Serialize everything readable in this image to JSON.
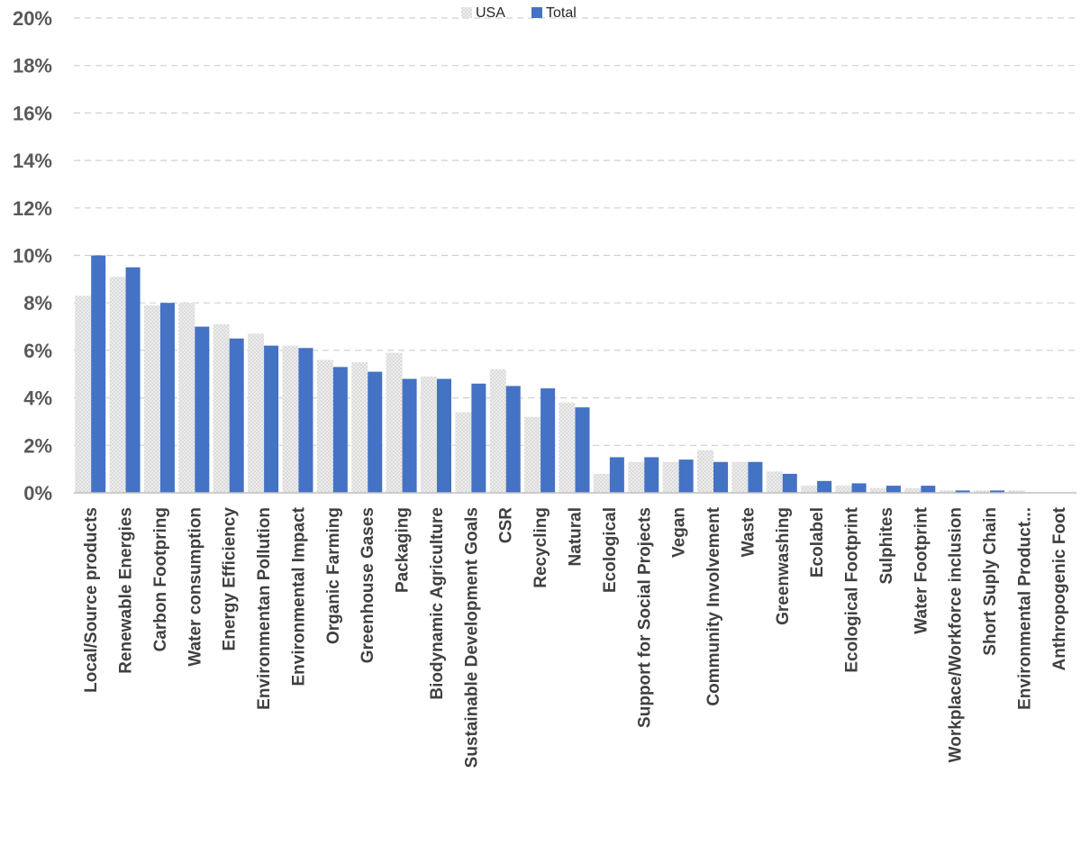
{
  "chart_data": {
    "type": "bar",
    "title": "",
    "xlabel": "",
    "ylabel": "",
    "ylim": [
      0,
      20
    ],
    "yticks": [
      "0%",
      "2%",
      "4%",
      "6%",
      "8%",
      "10%",
      "12%",
      "14%",
      "16%",
      "18%",
      "20%"
    ],
    "grid": "horizontal dashed",
    "legend_position": "top-center",
    "categories": [
      "Local/Source products",
      "Renewable Energies",
      "Carbon Footpring",
      "Water consumption",
      "Energy Efficiency",
      "Environmentan Pollution",
      "Environmental Impact",
      "Organic Farming",
      "Greenhouse Gases",
      "Packaging",
      "Biodynamic Agriculture",
      "Sustainable Development Goals",
      "CSR",
      "Recycling",
      "Natural",
      "Ecological",
      "Support for Social Projects",
      "Vegan",
      "Community Involvement",
      "Waste",
      "Greenwashing",
      "Ecolabel",
      "Ecological Footprint",
      "Sulphites",
      "Water Footprint",
      "Workplace/Workforce inclusion",
      "Short Suply Chain",
      "Environmental Product...",
      "Anthropogenic Foot"
    ],
    "series": [
      {
        "name": "USA",
        "color": "#e4e4e4",
        "pattern": "dotted",
        "values": [
          8.3,
          9.1,
          7.9,
          8.0,
          7.1,
          6.7,
          6.2,
          5.6,
          5.5,
          5.9,
          4.9,
          3.4,
          5.2,
          3.2,
          3.8,
          0.8,
          1.3,
          1.3,
          1.8,
          1.3,
          0.9,
          0.3,
          0.3,
          0.2,
          0.2,
          0.1,
          0.1,
          0.1,
          0.0
        ]
      },
      {
        "name": "Total",
        "color": "#4472c4",
        "values": [
          10.0,
          9.5,
          8.0,
          7.0,
          6.5,
          6.2,
          6.1,
          5.3,
          5.1,
          4.8,
          4.8,
          4.6,
          4.5,
          4.4,
          3.6,
          1.5,
          1.5,
          1.4,
          1.3,
          1.3,
          0.8,
          0.5,
          0.4,
          0.3,
          0.3,
          0.1,
          0.1,
          0.0,
          0.0
        ]
      }
    ]
  }
}
